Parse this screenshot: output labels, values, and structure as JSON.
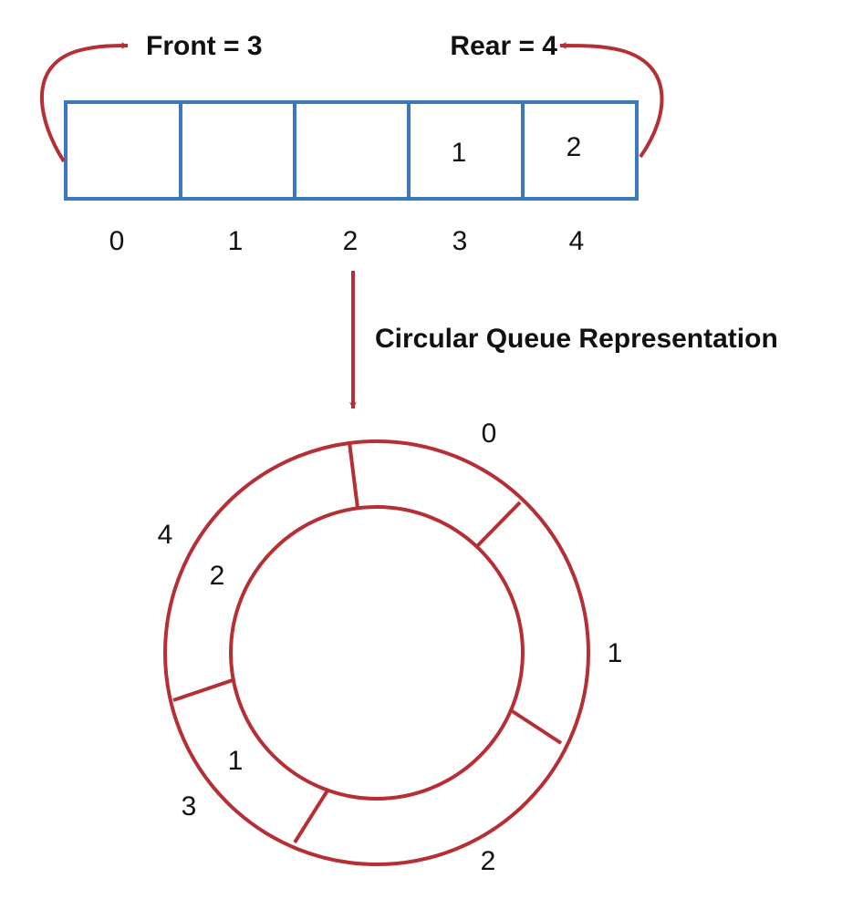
{
  "colors": {
    "array_stroke": "#3a78c2",
    "queue_stroke": "#b52f34",
    "text": "#111111",
    "background": "#ffffff"
  },
  "front_label": "Front = 3",
  "rear_label": "Rear = 4",
  "caption": "Circular Queue Representation",
  "array": {
    "indices": [
      "0",
      "1",
      "2",
      "3",
      "4"
    ],
    "values": [
      "",
      "",
      "",
      "1",
      "2"
    ]
  },
  "ring": {
    "indices": [
      "0",
      "1",
      "2",
      "3",
      "4"
    ],
    "values": [
      "",
      "",
      "",
      "1",
      "2"
    ]
  }
}
